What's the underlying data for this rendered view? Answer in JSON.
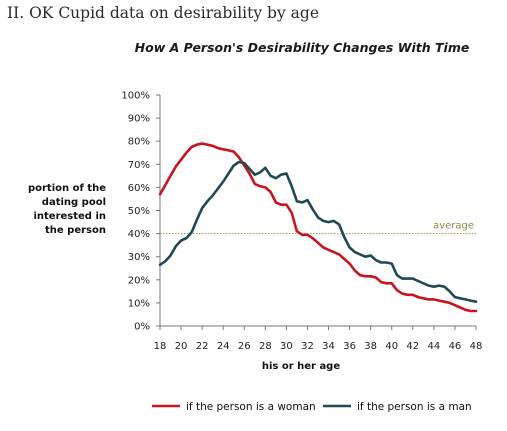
{
  "page": {
    "heading": "II. OK Cupid data on desirability by age"
  },
  "chart_data": {
    "type": "line",
    "title": "How A Person's Desirability Changes With Time",
    "xlabel": "his or her age",
    "ylabel_lines": [
      "portion of the",
      "dating pool",
      "interested in",
      "the person"
    ],
    "x_range": [
      18,
      48
    ],
    "x_ticks": [
      18,
      20,
      22,
      24,
      26,
      28,
      30,
      32,
      34,
      36,
      38,
      40,
      42,
      44,
      46,
      48
    ],
    "y_range": [
      0,
      100
    ],
    "y_ticks": [
      "0%",
      "10%",
      "20%",
      "30%",
      "40%",
      "50%",
      "60%",
      "70%",
      "80%",
      "90%",
      "100%"
    ],
    "grid": false,
    "reference_line": {
      "label": "average",
      "value": 40,
      "color": "#9a9a3c"
    },
    "legend_position": "bottom",
    "series": [
      {
        "name": "if the person is a woman",
        "color": "#c8141e",
        "x": [
          18,
          18.5,
          19,
          19.5,
          20,
          20.5,
          21,
          21.5,
          22,
          22.5,
          23,
          23.5,
          24,
          24.5,
          25,
          25.5,
          26,
          26.5,
          27,
          27.5,
          28,
          28.5,
          29,
          29.5,
          30,
          30.5,
          31,
          31.5,
          32,
          32.5,
          33,
          33.5,
          34,
          34.5,
          35,
          35.5,
          36,
          36.5,
          37,
          37.5,
          38,
          38.5,
          39,
          39.5,
          40,
          40.5,
          41,
          41.5,
          42,
          42.5,
          43,
          43.5,
          44,
          44.5,
          45,
          45.5,
          46,
          46.5,
          47,
          47.5,
          48
        ],
        "y": [
          57,
          61,
          65,
          69,
          72,
          75,
          77.5,
          78.5,
          79,
          78.5,
          78,
          77,
          76.5,
          76,
          75.5,
          73,
          69.5,
          66,
          61.5,
          60.5,
          60,
          58,
          53.5,
          52.5,
          52.5,
          49,
          41,
          39.5,
          39.5,
          38,
          36,
          34,
          33,
          32,
          31,
          29,
          27,
          24,
          22,
          21.5,
          21.5,
          21,
          19,
          18.5,
          18.5,
          15.5,
          14,
          13.5,
          13.5,
          12.5,
          12,
          11.5,
          11.5,
          11,
          10.5,
          10,
          9,
          8,
          7,
          6.5,
          6.5
        ]
      },
      {
        "name": "if the person is a man",
        "color": "#1f4a55",
        "x": [
          18,
          18.5,
          19,
          19.5,
          20,
          20.5,
          21,
          21.5,
          22,
          22.5,
          23,
          23.5,
          24,
          24.5,
          25,
          25.5,
          26,
          26.5,
          27,
          27.5,
          28,
          28.5,
          29,
          29.5,
          30,
          30.5,
          31,
          31.5,
          32,
          32.5,
          33,
          33.5,
          34,
          34.5,
          35,
          35.5,
          36,
          36.5,
          37,
          37.5,
          38,
          38.5,
          39,
          39.5,
          40,
          40.5,
          41,
          41.5,
          42,
          42.5,
          43,
          43.5,
          44,
          44.5,
          45,
          45.5,
          46,
          46.5,
          47,
          47.5,
          48
        ],
        "y": [
          26.5,
          28,
          30.5,
          34.5,
          37,
          38,
          40.5,
          46,
          51,
          54,
          56.5,
          59.5,
          62.5,
          66,
          69.5,
          71,
          70.5,
          68,
          65.5,
          66.5,
          68.5,
          65,
          64,
          65.5,
          66,
          60.5,
          54,
          53.5,
          54.5,
          50.5,
          47,
          45.5,
          45,
          45.5,
          44,
          38.5,
          34,
          32,
          31,
          30,
          30.5,
          28.5,
          27.5,
          27.5,
          27,
          22,
          20.5,
          20.5,
          20.5,
          19.5,
          18.5,
          17.5,
          17,
          17.5,
          17,
          15,
          12.5,
          12,
          11.5,
          11,
          10.5
        ]
      }
    ]
  }
}
